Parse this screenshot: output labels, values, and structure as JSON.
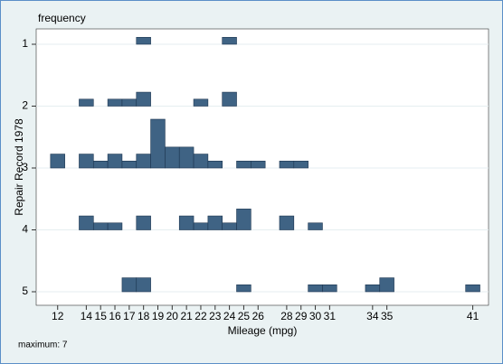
{
  "chart_data": {
    "type": "bar",
    "corner_label": "frequency",
    "xlabel": "Mileage (mpg)",
    "ylabel": "Repair Record 1978",
    "note": "maximum: 7",
    "color": "#3f6384",
    "xlim": [
      10.5,
      42.1
    ],
    "xticks": [
      12,
      14,
      15,
      16,
      17,
      18,
      19,
      20,
      21,
      22,
      23,
      24,
      25,
      26,
      28,
      29,
      30,
      31,
      34,
      35,
      41
    ],
    "max_frequency": 7,
    "rows": [
      {
        "label": "1",
        "x": [
          18,
          24
        ],
        "values": [
          1,
          1
        ]
      },
      {
        "label": "2",
        "x": [
          14,
          16,
          17,
          18,
          22,
          24
        ],
        "values": [
          1,
          1,
          1,
          2,
          1,
          2
        ]
      },
      {
        "label": "3",
        "x": [
          12,
          14,
          15,
          16,
          17,
          18,
          19,
          20,
          21,
          22,
          23,
          25,
          26,
          28,
          29
        ],
        "values": [
          2,
          2,
          1,
          2,
          1,
          2,
          7,
          3,
          3,
          2,
          1,
          1,
          1,
          1,
          1
        ]
      },
      {
        "label": "4",
        "x": [
          14,
          15,
          16,
          18,
          21,
          22,
          23,
          24,
          25,
          28,
          30
        ],
        "values": [
          2,
          1,
          1,
          2,
          2,
          1,
          2,
          1,
          3,
          2,
          1
        ]
      },
      {
        "label": "5",
        "x": [
          17,
          18,
          25,
          30,
          31,
          34,
          35,
          41
        ],
        "values": [
          2,
          2,
          1,
          1,
          1,
          1,
          2,
          1
        ]
      }
    ]
  }
}
